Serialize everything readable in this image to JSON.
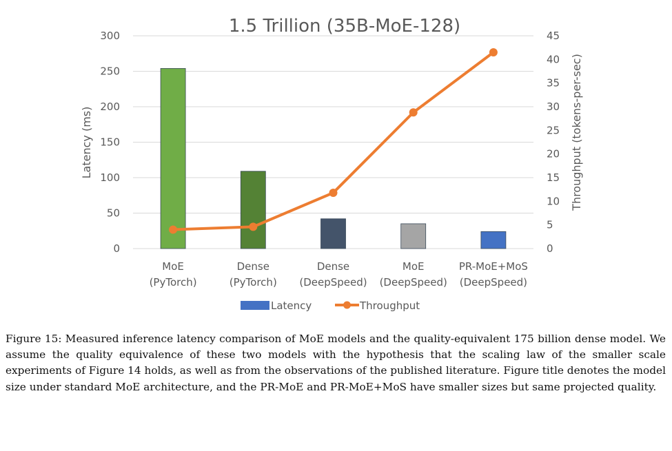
{
  "chart_data": {
    "type": "bar",
    "title": "1.5 Trillion (35B-MoE-128)",
    "categories": [
      [
        "MoE",
        "(PyTorch)"
      ],
      [
        "Dense",
        "(PyTorch)"
      ],
      [
        "Dense",
        "(DeepSpeed)"
      ],
      [
        "MoE",
        "(DeepSpeed)"
      ],
      [
        "PR-MoE+MoS",
        "(DeepSpeed)"
      ]
    ],
    "y_left": {
      "label": "Latency (ms)",
      "range": [
        0,
        300
      ],
      "ticks": [
        "0",
        "50",
        "100",
        "150",
        "200",
        "250",
        "300"
      ]
    },
    "y_right": {
      "label": "Throughput  (tokens-per-sec)",
      "range": [
        0,
        45
      ],
      "ticks": [
        "0",
        "5",
        "10",
        "15",
        "20",
        "25",
        "30",
        "35",
        "40",
        "45"
      ]
    },
    "series": [
      {
        "name": "Latency",
        "kind": "bar",
        "axis": "left",
        "values": [
          254,
          109,
          42,
          35,
          24
        ],
        "colors": [
          "#70ad47",
          "#548235",
          "#44546a",
          "#a5a5a5",
          "#4472c4"
        ]
      },
      {
        "name": "Throughput",
        "kind": "line",
        "axis": "right",
        "values": [
          4.0,
          4.6,
          11.8,
          28.8,
          41.5
        ],
        "color": "#ed7d31"
      }
    ],
    "legend": [
      "Latency",
      "Throughput"
    ],
    "legend_position": "bottom",
    "grid": true
  },
  "caption": "Figure 15: Measured inference latency comparison of MoE models and the quality-equivalent 175 billion dense model. We assume the quality equivalence of these two models with the hypothesis that the scaling law of the smaller scale experiments of Figure 14 holds, as well as from the observations of the published literature. Figure title denotes the model size under standard MoE architecture, and the PR-MoE and PR-MoE+MoS have smaller sizes but same projected quality."
}
